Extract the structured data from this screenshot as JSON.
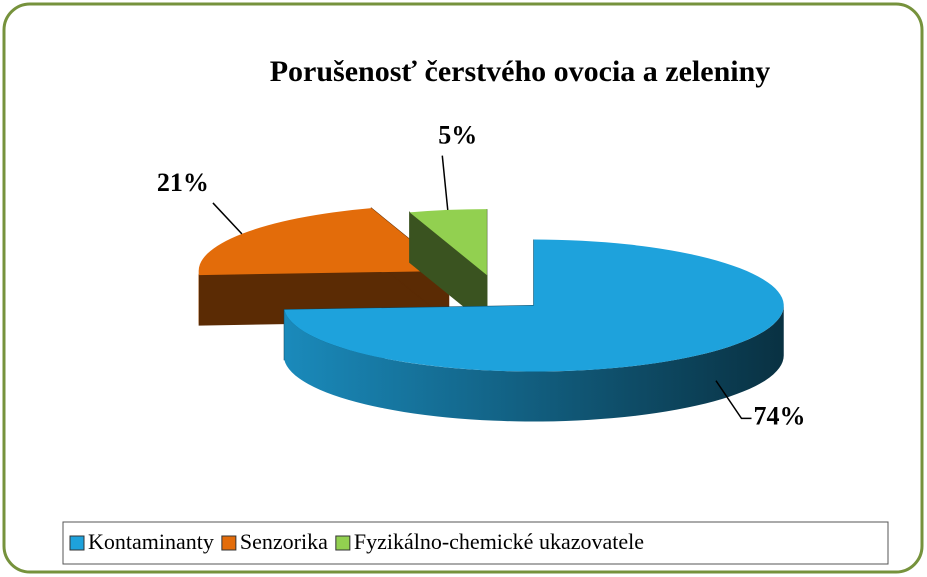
{
  "chart_data": {
    "type": "pie",
    "title": "Porušenosť čerstvého ovocia a zeleniny",
    "categories": [
      "Kontaminanty",
      "Senzorika",
      "Fyzikálno-chemické ukazovatele"
    ],
    "values": [
      74,
      21,
      5
    ],
    "value_labels": [
      "74%",
      "21%",
      "5%"
    ],
    "colors": [
      "#1ea2dc",
      "#e36c0a",
      "#92d050"
    ],
    "legend": "bottom"
  }
}
